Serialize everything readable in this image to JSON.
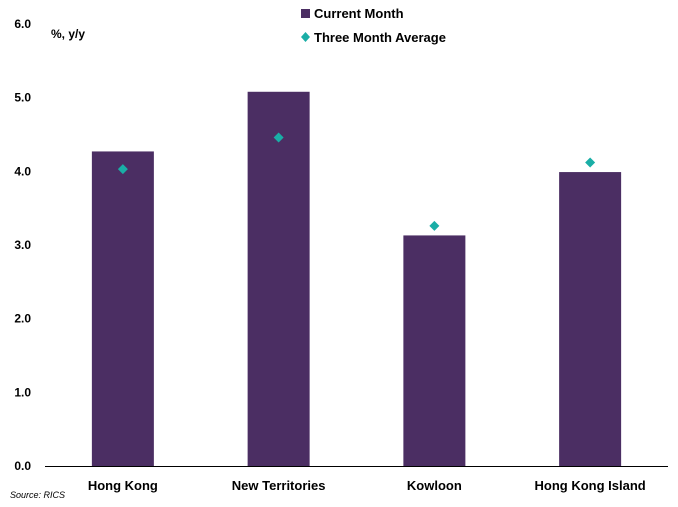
{
  "chart_data": {
    "type": "bar",
    "categories": [
      "Hong Kong",
      "New Territories",
      "Kowloon",
      "Hong Kong Island"
    ],
    "series": [
      {
        "name": "Current Month",
        "kind": "bar",
        "color": "#4b2e63",
        "values": [
          4.27,
          5.08,
          3.13,
          3.99
        ]
      },
      {
        "name": "Three Month Average",
        "kind": "marker",
        "marker": "diamond",
        "color": "#1aaea6",
        "values": [
          4.03,
          4.46,
          3.26,
          4.12
        ]
      }
    ],
    "ylabel": "%, y/y",
    "ylim": [
      0,
      6
    ],
    "yticks": [
      "0.0",
      "1.0",
      "2.0",
      "3.0",
      "4.0",
      "5.0",
      "6.0"
    ],
    "legend_position": "top-right",
    "grid": false,
    "source": "Source: RICS"
  }
}
